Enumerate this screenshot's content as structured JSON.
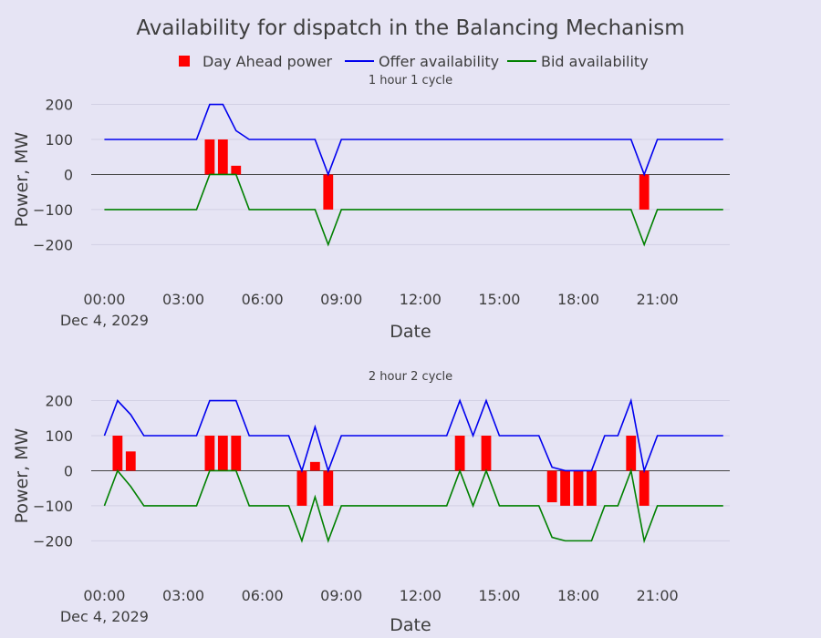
{
  "chart_data": {
    "type": "bar+line",
    "title": "Availability for dispatch in the Balancing Mechanism",
    "legend": {
      "position": "top-center",
      "entries": [
        {
          "label": "Day Ahead power",
          "kind": "bar",
          "color": "#ff0000"
        },
        {
          "label": "Offer availability",
          "kind": "line",
          "color": "#0000ee"
        },
        {
          "label": "Bid availability",
          "kind": "line",
          "color": "#008000"
        }
      ]
    },
    "colors": {
      "background": "#e6e4f4",
      "grid": "#d2d0e4",
      "zero_line": "#444444",
      "text": "#3d3d3d"
    },
    "x_tick_labels": [
      "00:00",
      "03:00",
      "06:00",
      "09:00",
      "12:00",
      "15:00",
      "18:00",
      "21:00"
    ],
    "x_tick_hours": [
      0,
      3,
      6,
      9,
      12,
      15,
      18,
      21
    ],
    "date_label": "Dec 4, 2029",
    "xlabel": "Date",
    "ylabel": "Power, MW",
    "y_ticks": [
      200,
      100,
      0,
      -100,
      -200
    ],
    "y_tick_labels": [
      "200",
      "100",
      "0",
      "−100",
      "−200"
    ],
    "xlim": [
      -0.5,
      23.75
    ],
    "ylim": [
      -290,
      230
    ],
    "panels": [
      {
        "subtitle": "1 hour 1 cycle",
        "bars": [
          {
            "hour": 4.0,
            "value": 100
          },
          {
            "hour": 4.5,
            "value": 100
          },
          {
            "hour": 5.0,
            "value": 25
          },
          {
            "hour": 8.5,
            "value": -100
          },
          {
            "hour": 20.5,
            "value": -100
          }
        ],
        "offer": [
          [
            0,
            100
          ],
          [
            3.5,
            100
          ],
          [
            4,
            200
          ],
          [
            4.5,
            200
          ],
          [
            5,
            125
          ],
          [
            5.5,
            100
          ],
          [
            8,
            100
          ],
          [
            8.5,
            0
          ],
          [
            9,
            100
          ],
          [
            20,
            100
          ],
          [
            20.5,
            0
          ],
          [
            21,
            100
          ],
          [
            23.5,
            100
          ]
        ],
        "bid": [
          [
            0,
            -100
          ],
          [
            3.5,
            -100
          ],
          [
            4,
            0
          ],
          [
            5,
            0
          ],
          [
            5.5,
            -100
          ],
          [
            8,
            -100
          ],
          [
            8.5,
            -200
          ],
          [
            9,
            -100
          ],
          [
            20,
            -100
          ],
          [
            20.5,
            -200
          ],
          [
            21,
            -100
          ],
          [
            23.5,
            -100
          ]
        ]
      },
      {
        "subtitle": "2 hour 2 cycle",
        "bars": [
          {
            "hour": 0.5,
            "value": 100
          },
          {
            "hour": 1.0,
            "value": 55
          },
          {
            "hour": 4.0,
            "value": 100
          },
          {
            "hour": 4.5,
            "value": 100
          },
          {
            "hour": 5.0,
            "value": 100
          },
          {
            "hour": 7.5,
            "value": -100
          },
          {
            "hour": 8.0,
            "value": 25
          },
          {
            "hour": 8.5,
            "value": -100
          },
          {
            "hour": 13.5,
            "value": 100
          },
          {
            "hour": 14.5,
            "value": 100
          },
          {
            "hour": 17.0,
            "value": -90
          },
          {
            "hour": 17.5,
            "value": -100
          },
          {
            "hour": 18.0,
            "value": -100
          },
          {
            "hour": 18.5,
            "value": -100
          },
          {
            "hour": 20.0,
            "value": 100
          },
          {
            "hour": 20.5,
            "value": -100
          }
        ],
        "offer": [
          [
            0,
            100
          ],
          [
            0.5,
            200
          ],
          [
            1,
            160
          ],
          [
            1.5,
            100
          ],
          [
            3.5,
            100
          ],
          [
            4,
            200
          ],
          [
            5,
            200
          ],
          [
            5.5,
            100
          ],
          [
            7,
            100
          ],
          [
            7.5,
            0
          ],
          [
            8,
            125
          ],
          [
            8.5,
            0
          ],
          [
            9,
            100
          ],
          [
            13,
            100
          ],
          [
            13.5,
            200
          ],
          [
            14,
            100
          ],
          [
            14.5,
            200
          ],
          [
            15,
            100
          ],
          [
            16.5,
            100
          ],
          [
            17,
            10
          ],
          [
            17.5,
            0
          ],
          [
            18.5,
            0
          ],
          [
            19,
            100
          ],
          [
            19.5,
            100
          ],
          [
            20,
            200
          ],
          [
            20.5,
            0
          ],
          [
            21,
            100
          ],
          [
            23.5,
            100
          ]
        ],
        "bid": [
          [
            0,
            -100
          ],
          [
            0.5,
            0
          ],
          [
            1,
            -45
          ],
          [
            1.5,
            -100
          ],
          [
            3.5,
            -100
          ],
          [
            4,
            0
          ],
          [
            5,
            0
          ],
          [
            5.5,
            -100
          ],
          [
            7,
            -100
          ],
          [
            7.5,
            -200
          ],
          [
            8,
            -75
          ],
          [
            8.5,
            -200
          ],
          [
            9,
            -100
          ],
          [
            13,
            -100
          ],
          [
            13.5,
            0
          ],
          [
            14,
            -100
          ],
          [
            14.5,
            0
          ],
          [
            15,
            -100
          ],
          [
            16.5,
            -100
          ],
          [
            17,
            -190
          ],
          [
            17.5,
            -200
          ],
          [
            18.5,
            -200
          ],
          [
            19,
            -100
          ],
          [
            19.5,
            -100
          ],
          [
            20,
            0
          ],
          [
            20.5,
            -200
          ],
          [
            21,
            -100
          ],
          [
            23.5,
            -100
          ]
        ]
      }
    ]
  }
}
